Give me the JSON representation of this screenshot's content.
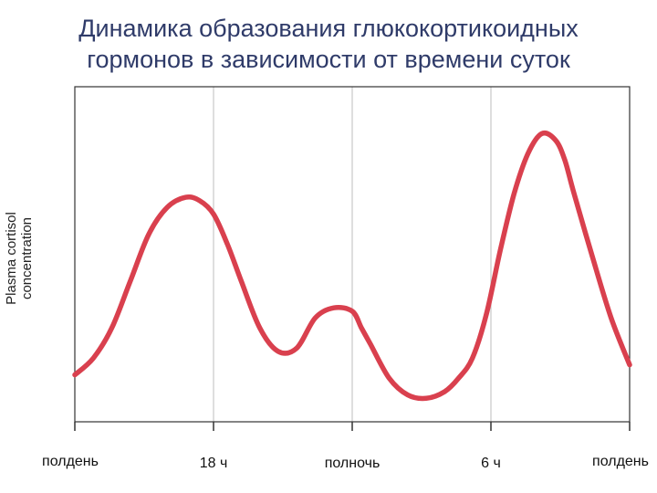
{
  "chart_data": {
    "type": "line",
    "title_lines": [
      "Динамика образования глюкокортикоидных",
      "гормонов в зависимости от времени суток"
    ],
    "ylabel_lines": [
      "Plasma cortisol",
      "concentration"
    ],
    "xlabel": "",
    "categories": [
      "полдень",
      "18 ч",
      "полночь",
      "6 ч",
      "полдень"
    ],
    "x_hours": [
      0,
      6,
      12,
      18,
      24
    ],
    "xlim": [
      0,
      24
    ],
    "ylim": [
      0,
      100
    ],
    "y_ticks_shown": false,
    "grid": "vertical",
    "legend": "none",
    "series": [
      {
        "color": "#d9404e",
        "x": [
          0,
          0.8,
          1.6,
          2.4,
          3.2,
          4.0,
          4.8,
          5.4,
          6.0,
          6.6,
          7.2,
          8.0,
          8.8,
          9.6,
          10.4,
          11.2,
          12.0,
          12.4,
          12.8,
          13.6,
          14.4,
          15.2,
          16.0,
          16.6,
          17.2,
          17.8,
          18.4,
          19.0,
          19.6,
          20.2,
          20.8,
          21.2,
          21.6,
          22.4,
          23.2,
          24.0
        ],
        "y": [
          14,
          19,
          28,
          42,
          56,
          64,
          67,
          66,
          62,
          53,
          42,
          28,
          21,
          22,
          31,
          34,
          33,
          28,
          23,
          13,
          8,
          7,
          9,
          13,
          19,
          32,
          51,
          68,
          80,
          86,
          84,
          78,
          68,
          49,
          31,
          17
        ]
      }
    ]
  }
}
